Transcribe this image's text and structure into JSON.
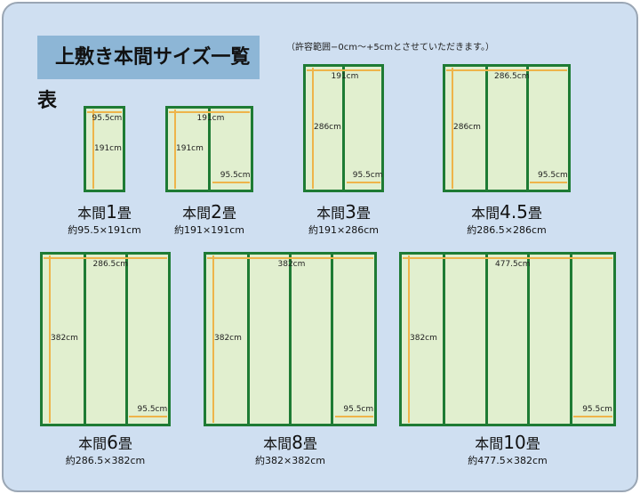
{
  "title": "上敷き本間サイズ一覧表",
  "note": "（許容範囲−0cm～+5cmとさせていただきます。）",
  "colors": {
    "background": "#cfdff1",
    "title_box": "#8db6d6",
    "mat_fill": "#e1efcf",
    "mat_border": "#1e7b34",
    "arrow": "#eeb44a"
  },
  "mats": [
    {
      "prefix": "本間",
      "num": "1",
      "suffix": "畳",
      "size": "約95.5×191cm",
      "width_label": "95.5cm",
      "height_label": "191cm",
      "panel_label": ""
    },
    {
      "prefix": "本間",
      "num": "2",
      "suffix": "畳",
      "size": "約191×191cm",
      "width_label": "191cm",
      "height_label": "191cm",
      "panel_label": "95.5cm"
    },
    {
      "prefix": "本間",
      "num": "3",
      "suffix": "畳",
      "size": "約191×286cm",
      "width_label": "191cm",
      "height_label": "286cm",
      "panel_label": "95.5cm"
    },
    {
      "prefix": "本間",
      "num": "4.5",
      "suffix": "畳",
      "size": "約286.5×286cm",
      "width_label": "286.5cm",
      "height_label": "286cm",
      "panel_label": "95.5cm"
    },
    {
      "prefix": "本間",
      "num": "6",
      "suffix": "畳",
      "size": "約286.5×382cm",
      "width_label": "286.5cm",
      "height_label": "382cm",
      "panel_label": "95.5cm"
    },
    {
      "prefix": "本間",
      "num": "8",
      "suffix": "畳",
      "size": "約382×382cm",
      "width_label": "382cm",
      "height_label": "382cm",
      "panel_label": "95.5cm"
    },
    {
      "prefix": "本間",
      "num": "10",
      "suffix": "畳",
      "size": "約477.5×382cm",
      "width_label": "477.5cm",
      "height_label": "382cm",
      "panel_label": "95.5cm"
    }
  ]
}
